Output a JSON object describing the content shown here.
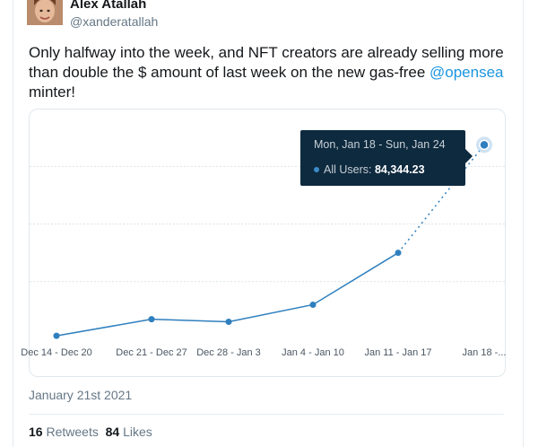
{
  "tweet": {
    "author_name": "Alex Atallah",
    "author_handle": "@xanderatallah",
    "text_before": "Only halfway into the week, and NFT creators are already selling more than double the $ amount of last week on the new gas-free ",
    "mention": "@opensea",
    "text_after": " minter!",
    "date": "January 21st 2021",
    "retweets_count": "16",
    "retweets_label": "Retweets",
    "likes_count": "84",
    "likes_label": "Likes"
  },
  "tooltip": {
    "range": "Mon, Jan 18 - Sun, Jan 24",
    "series_label": "All Users:",
    "value": "84,344.23",
    "dot_color": "#3d8cc9"
  },
  "colors": {
    "line": "#2e7fbe",
    "accent": "#1b95e0",
    "tooltip_bg": "#0e2a3f"
  },
  "chart_data": {
    "type": "line",
    "categories": [
      "Dec 14 - Dec 20",
      "Dec 21 - Dec 27",
      "Dec 28 - Jan 3",
      "Jan 4 - Jan 10",
      "Jan 11 - Jan 17",
      "Jan 18 -..."
    ],
    "series": [
      {
        "name": "All Users",
        "values": [
          1500,
          8700,
          7600,
          15000,
          37500,
          84344.23
        ],
        "last_segment_dotted": true
      }
    ],
    "ylim": [
      0,
      95000
    ],
    "grid": true,
    "gridline_values": [
      25000,
      50000,
      75000
    ]
  }
}
